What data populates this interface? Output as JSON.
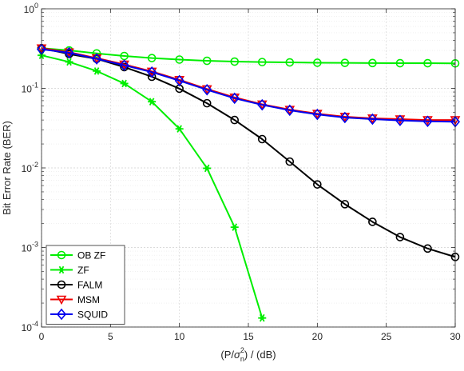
{
  "chart_data": {
    "type": "line",
    "title": "",
    "xlabel": "(P/σ_n^2) / (dB)",
    "xlabel_parts": {
      "open": "(P/",
      "sigma": "σ",
      "sup": "2",
      "sub": "n",
      "close": ") / (dB)"
    },
    "ylabel": "Bit Error Rate (BER)",
    "xlim": [
      0,
      30
    ],
    "ylim": [
      0.0001,
      1
    ],
    "yscale": "log",
    "grid": true,
    "legend_position": "bottom-left",
    "x_ticks": [
      "0",
      "5",
      "10",
      "15",
      "20",
      "25",
      "30"
    ],
    "y_ticks": [
      {
        "base": "10",
        "exp": "0",
        "value": 1
      },
      {
        "base": "10",
        "exp": "-1",
        "value": 0.1
      },
      {
        "base": "10",
        "exp": "-2",
        "value": 0.01
      },
      {
        "base": "10",
        "exp": "-3",
        "value": 0.001
      },
      {
        "base": "10",
        "exp": "-4",
        "value": 0.0001
      }
    ],
    "x": [
      0,
      2,
      4,
      6,
      8,
      10,
      12,
      14,
      16,
      18,
      20,
      22,
      24,
      26,
      28,
      30
    ],
    "series": [
      {
        "name": "OB ZF",
        "color": "#00ee00",
        "marker": "circle",
        "values": [
          0.32,
          0.3,
          0.275,
          0.255,
          0.24,
          0.23,
          0.222,
          0.217,
          0.214,
          0.212,
          0.21,
          0.209,
          0.208,
          0.207,
          0.207,
          0.206
        ]
      },
      {
        "name": "ZF",
        "color": "#00ee00",
        "marker": "star",
        "values": [
          0.26,
          0.215,
          0.165,
          0.115,
          0.068,
          0.031,
          0.0099,
          0.0018,
          0.00013,
          null,
          null,
          null,
          null,
          null,
          null,
          null
        ]
      },
      {
        "name": "FALM",
        "color": "#000000",
        "marker": "circle",
        "values": [
          0.32,
          0.27,
          0.235,
          0.185,
          0.14,
          0.099,
          0.065,
          0.04,
          0.023,
          0.012,
          0.0062,
          0.0035,
          0.0021,
          0.00135,
          0.00097,
          0.00076
        ]
      },
      {
        "name": "MSM",
        "color": "#ee0000",
        "marker": "triangle-down",
        "values": [
          0.32,
          0.285,
          0.24,
          0.2,
          0.163,
          0.128,
          0.098,
          0.077,
          0.063,
          0.054,
          0.048,
          0.044,
          0.042,
          0.041,
          0.04,
          0.04
        ]
      },
      {
        "name": "SQUID",
        "color": "#0000ee",
        "marker": "diamond",
        "values": [
          0.31,
          0.28,
          0.235,
          0.195,
          0.16,
          0.125,
          0.096,
          0.075,
          0.062,
          0.053,
          0.047,
          0.043,
          0.041,
          0.0395,
          0.0385,
          0.038
        ]
      }
    ]
  }
}
